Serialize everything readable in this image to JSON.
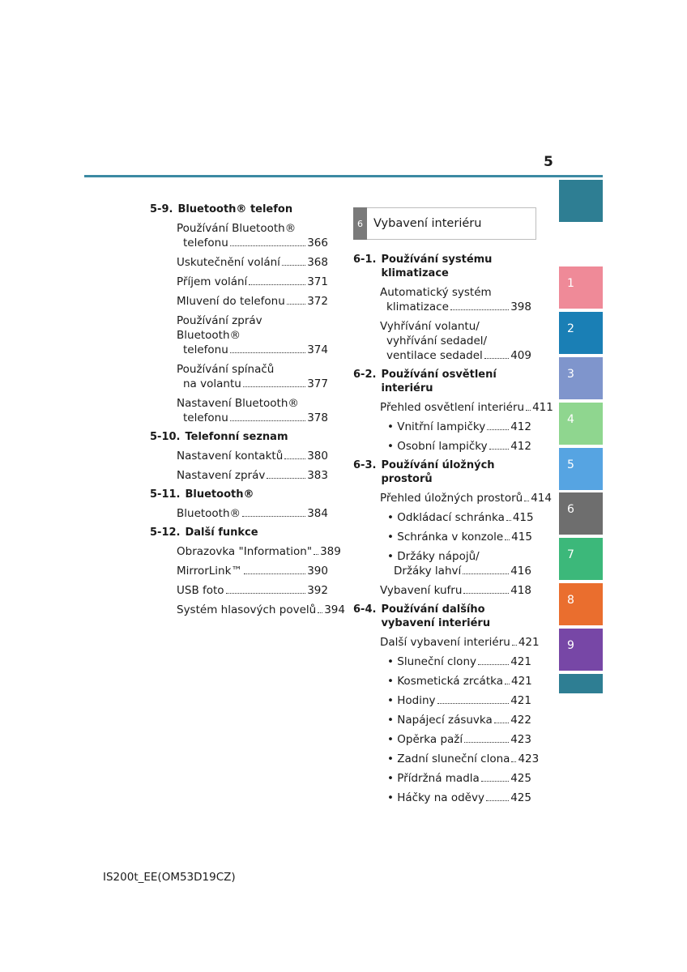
{
  "page_number": "5",
  "footer": "IS200t_EE(OM53D19CZ)",
  "tabs": [
    {
      "label": "",
      "color": "#2e7e93"
    },
    {
      "label": "1",
      "color": "#ef8a98"
    },
    {
      "label": "2",
      "color": "#1a7fb5"
    },
    {
      "label": "3",
      "color": "#7f95cc"
    },
    {
      "label": "4",
      "color": "#8fd68f"
    },
    {
      "label": "5",
      "color": "#56a4e2"
    },
    {
      "label": "6",
      "color": "#6e6e6e"
    },
    {
      "label": "7",
      "color": "#3cb87a"
    },
    {
      "label": "8",
      "color": "#ea6e2e"
    },
    {
      "label": "9",
      "color": "#7747a6"
    },
    {
      "label": "",
      "color": "#2e7e93"
    }
  ],
  "left": {
    "s1": {
      "num": "5-9.",
      "title": "Bluetooth® telefon"
    },
    "e1": {
      "line1": "Používání Bluetooth®",
      "line2": "telefonu",
      "page": "366"
    },
    "e2": {
      "label": "Uskutečnění volání",
      "page": "368"
    },
    "e3": {
      "label": "Příjem volání",
      "page": "371"
    },
    "e4": {
      "label": "Mluvení do telefonu",
      "page": "372"
    },
    "e5": {
      "line1": "Používání zpráv Bluetooth®",
      "line2": "telefonu",
      "page": "374"
    },
    "e6": {
      "line1": "Používání spínačů",
      "line2": "na volantu",
      "page": "377"
    },
    "e7": {
      "line1": "Nastavení Bluetooth®",
      "line2": "telefonu",
      "page": "378"
    },
    "s2": {
      "num": "5-10.",
      "title": "Telefonní seznam"
    },
    "e8": {
      "label": "Nastavení kontaktů",
      "page": "380"
    },
    "e9": {
      "label": "Nastavení zpráv",
      "page": "383"
    },
    "s3": {
      "num": "5-11.",
      "title": "Bluetooth®"
    },
    "e10": {
      "label": "Bluetooth®",
      "page": "384"
    },
    "s4": {
      "num": "5-12.",
      "title": "Další funkce"
    },
    "e11": {
      "label": "Obrazovka \"Information\"",
      "page": "389"
    },
    "e12": {
      "label": "MirrorLink™",
      "page": "390"
    },
    "e13": {
      "label": "USB foto",
      "page": "392"
    },
    "e14": {
      "label": "Systém hlasových povelů",
      "page": "394"
    }
  },
  "chapter": {
    "number": "6",
    "title": "Vybavení interiéru"
  },
  "right": {
    "s1": {
      "num": "6-1.",
      "title": "Používání systému klimatizace"
    },
    "e1": {
      "line1": "Automatický systém",
      "line2": "klimatizace",
      "page": "398"
    },
    "e2": {
      "line1": "Vyhřívání volantu/",
      "line1b": "vyhřívání sedadel/",
      "line2": "ventilace sedadel",
      "page": "409"
    },
    "s2": {
      "num": "6-2.",
      "title": "Používání osvětlení interiéru"
    },
    "e3": {
      "label": "Přehled osvětlení interiéru",
      "page": "411"
    },
    "e4": {
      "label": "• Vnitřní lampičky",
      "page": "412"
    },
    "e5": {
      "label": "• Osobní lampičky",
      "page": "412"
    },
    "s3": {
      "num": "6-3.",
      "title": "Používání úložných prostorů"
    },
    "e6": {
      "label": "Přehled úložných prostorů",
      "page": "414"
    },
    "e7": {
      "label": "• Odkládací schránka",
      "page": "415"
    },
    "e8": {
      "label": "• Schránka v konzole",
      "page": "415"
    },
    "e9": {
      "line1": "• Držáky nápojů/",
      "line2": "Držáky lahví",
      "page": "416"
    },
    "e10": {
      "label": "Vybavení kufru",
      "page": "418"
    },
    "s4": {
      "num": "6-4.",
      "title": "Používání dalšího vybavení interiéru"
    },
    "e11": {
      "label": "Další vybavení interiéru",
      "page": "421"
    },
    "e12": {
      "label": "• Sluneční clony",
      "page": "421"
    },
    "e13": {
      "label": "• Kosmetická zrcátka",
      "page": "421"
    },
    "e14": {
      "label": "• Hodiny",
      "page": "421"
    },
    "e15": {
      "label": "• Napájecí zásuvka",
      "page": "422"
    },
    "e16": {
      "label": "• Opěrka paží",
      "page": "423"
    },
    "e17": {
      "label": "• Zadní sluneční clona",
      "page": "423"
    },
    "e18": {
      "label": "• Přídržná madla",
      "page": "425"
    },
    "e19": {
      "label": "• Háčky na oděvy",
      "page": "425"
    }
  }
}
